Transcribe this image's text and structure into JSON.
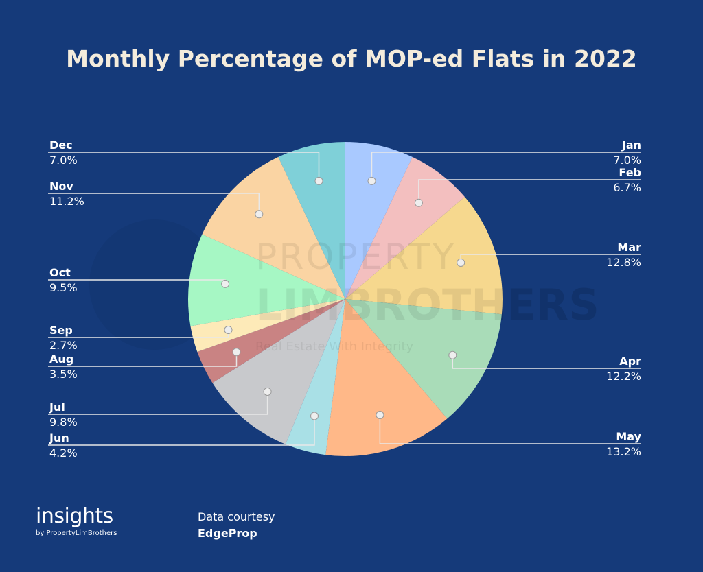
{
  "chart_data": {
    "type": "pie",
    "title": "Monthly Percentage of MOP-ed Flats in 2022",
    "slices": [
      {
        "label": "Jan",
        "value": 7.0,
        "display": "7.0%",
        "color": "#a9c9ff"
      },
      {
        "label": "Feb",
        "value": 6.7,
        "display": "6.7%",
        "color": "#f3bfbf"
      },
      {
        "label": "Mar",
        "value": 12.8,
        "display": "12.8%",
        "color": "#f6d88e"
      },
      {
        "label": "Apr",
        "value": 12.2,
        "display": "12.2%",
        "color": "#a9dcb8"
      },
      {
        "label": "May",
        "value": 13.2,
        "display": "13.2%",
        "color": "#ffb888"
      },
      {
        "label": "Jun",
        "value": 4.2,
        "display": "4.2%",
        "color": "#a9e0e6"
      },
      {
        "label": "Jul",
        "value": 9.8,
        "display": "9.8%",
        "color": "#c8c9cc"
      },
      {
        "label": "Aug",
        "value": 3.5,
        "display": "3.5%",
        "color": "#c98383"
      },
      {
        "label": "Sep",
        "value": 2.7,
        "display": "2.7%",
        "color": "#fdeab8"
      },
      {
        "label": "Oct",
        "value": 9.5,
        "display": "9.5%",
        "color": "#a6f7c4"
      },
      {
        "label": "Nov",
        "value": 11.2,
        "display": "11.2%",
        "color": "#fad4a3"
      },
      {
        "label": "Dec",
        "value": 7.0,
        "display": "7.0%",
        "color": "#7fd0d8"
      }
    ],
    "start": "top",
    "direction": "clockwise",
    "legend": "none",
    "label_style": "leader-lines"
  },
  "watermark": {
    "line1": "PROPERTY",
    "line2": "LIMBROTHERS",
    "tagline": "Real Estate With Integrity"
  },
  "brand": {
    "name": "insights",
    "sub": "by PropertyLimBrothers"
  },
  "credit": {
    "line1": "Data courtesy",
    "source": "EdgeProp"
  },
  "colors": {
    "background": "#153a7a",
    "title": "#f4ecdc",
    "leader": "#e8e8e8"
  }
}
